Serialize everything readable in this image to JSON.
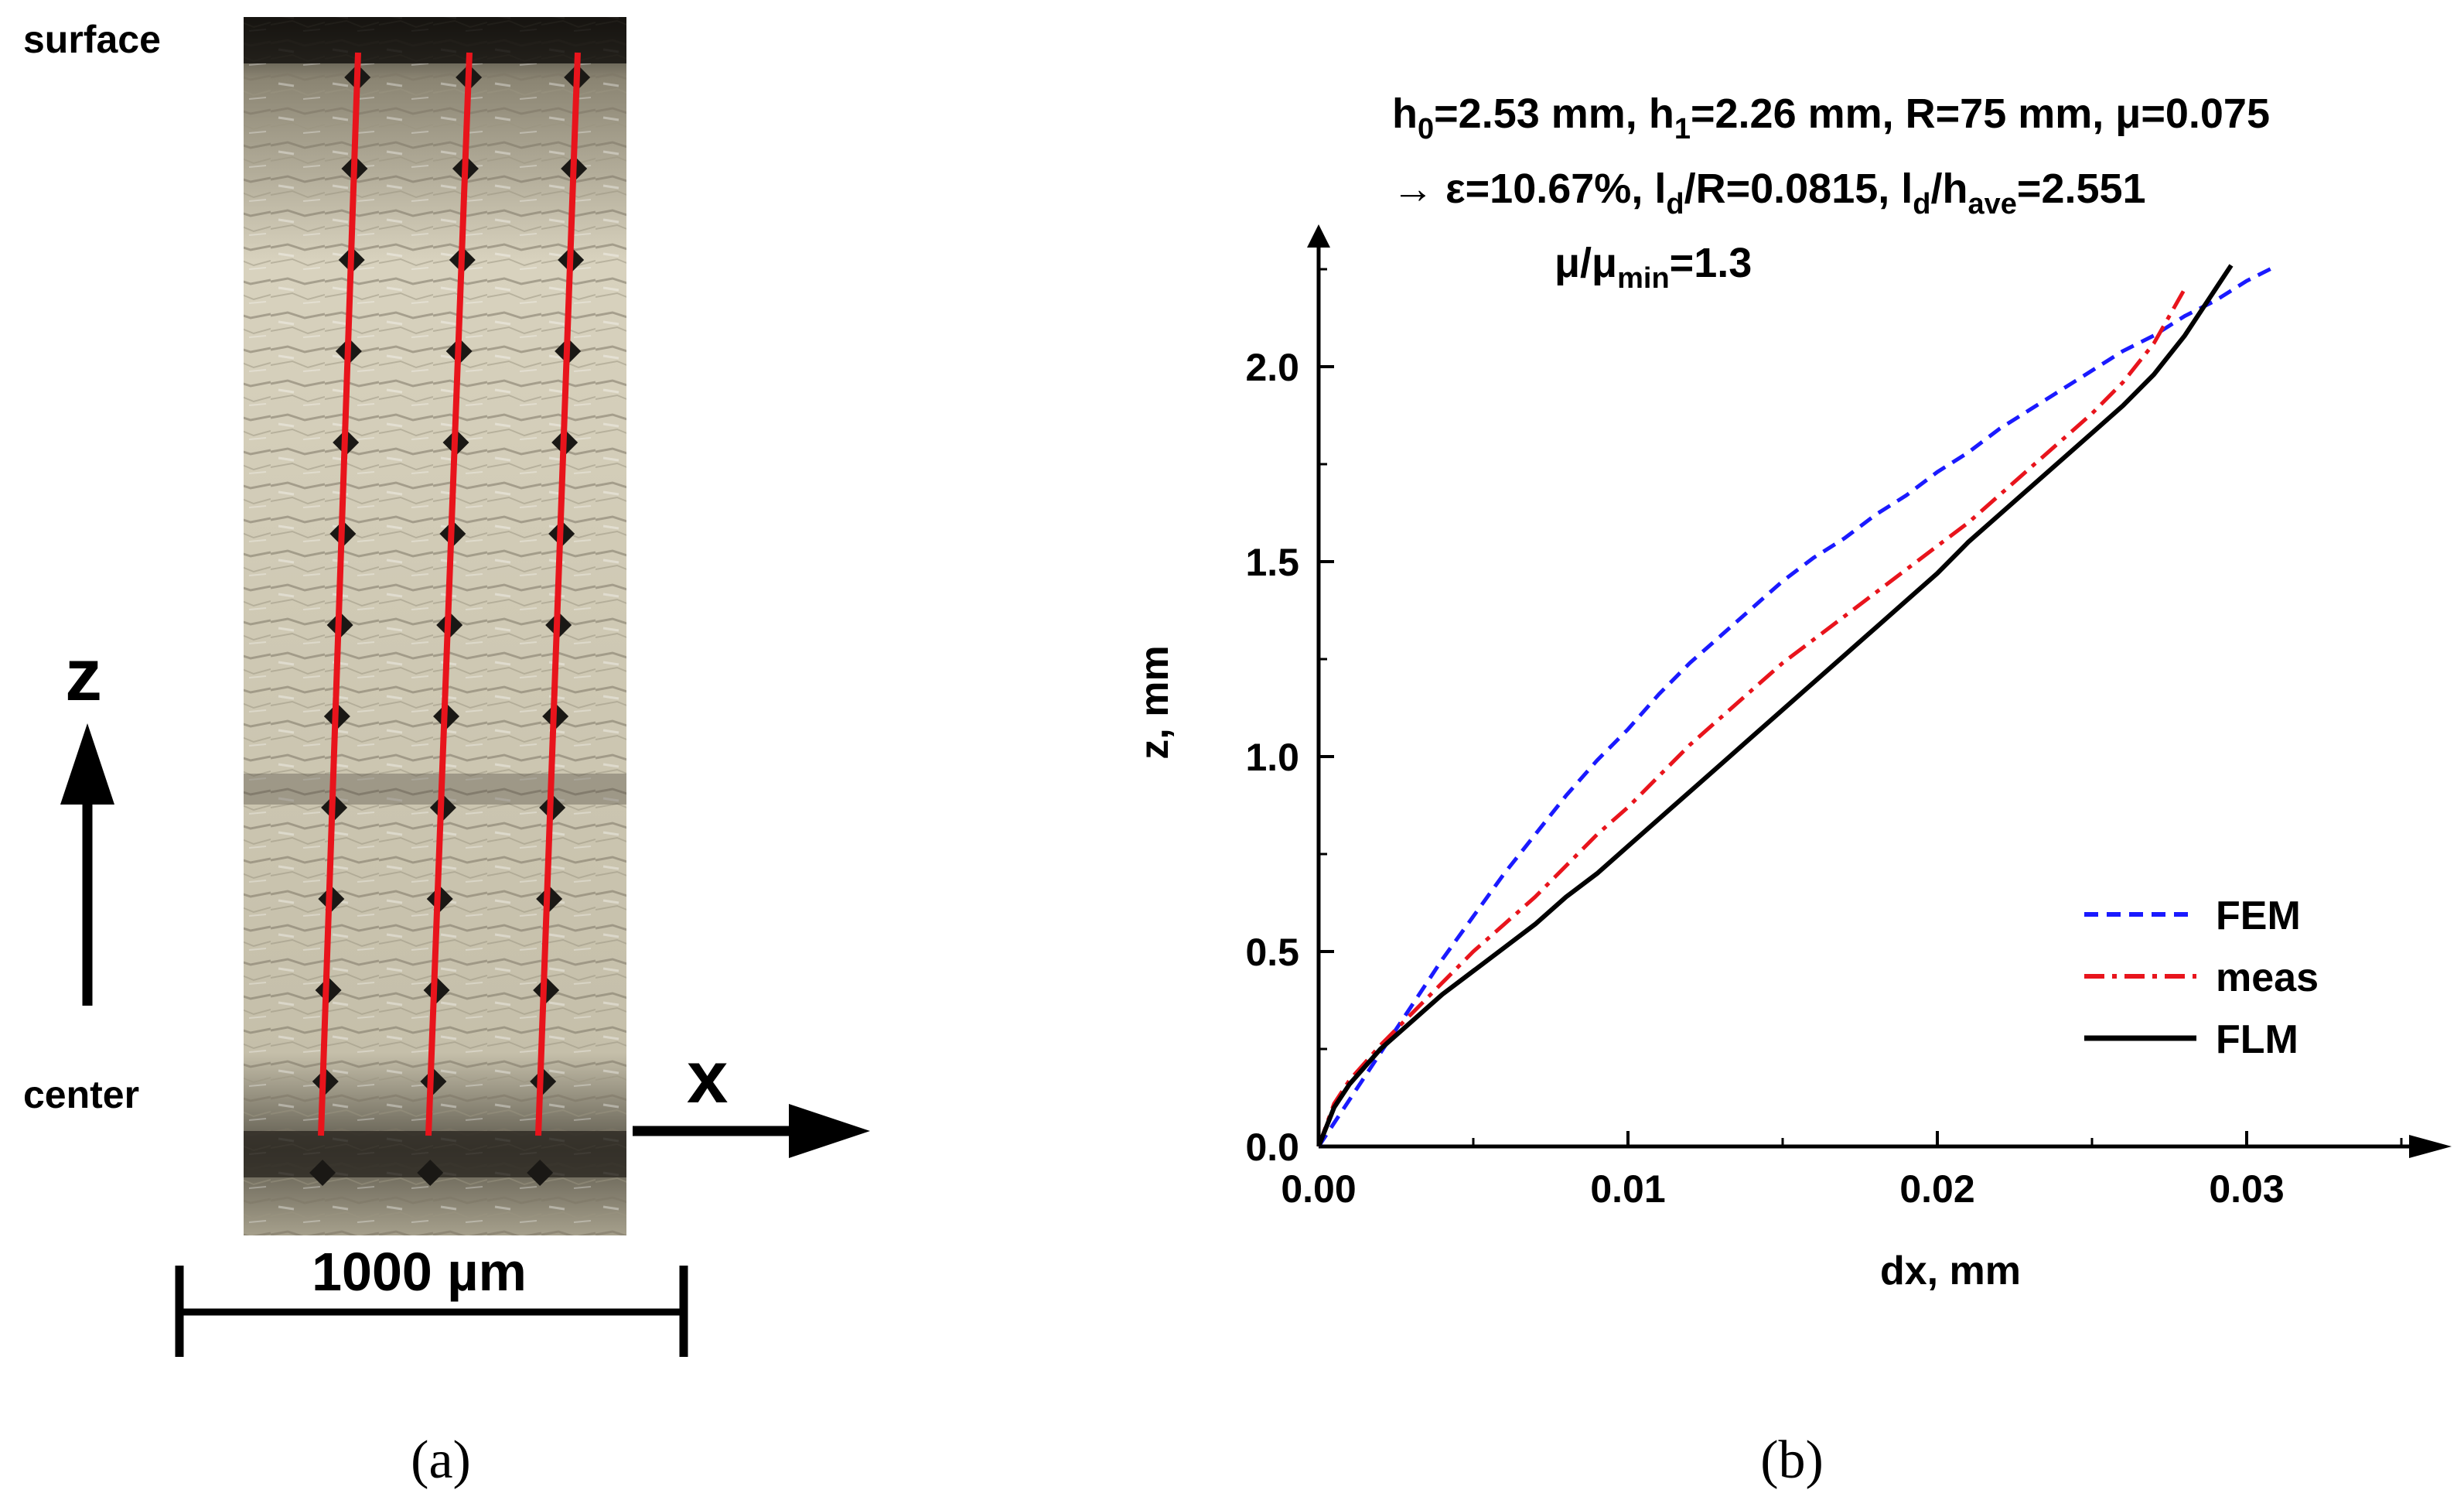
{
  "panel_a": {
    "label_surface": "surface",
    "label_center": "center",
    "axis_z": "z",
    "axis_x": "x",
    "scale_bar": "1000 µm",
    "caption": "(a)",
    "line_color": "#e8141c"
  },
  "panel_b": {
    "caption": "(b)",
    "annotation": {
      "line1": {
        "h0_base": "h",
        "h0_sub": "0",
        "h0_val": "=2.53 mm, ",
        "h1_base": "h",
        "h1_sub": "1",
        "h1_val": "=2.26 mm, R=75 mm, μ=0.075"
      },
      "line2": {
        "pre": "→ ε=10.67%, ",
        "ld1_base": "l",
        "ld1_sub": "d",
        "ld1_val": "/R=0.0815, ",
        "ld2_base": "l",
        "ld2_sub": "d",
        "ld2_mid": "/h",
        "ave_sub": "ave",
        "ld2_val": "=2.551"
      },
      "line3": {
        "base": "μ/μ",
        "sub": "min",
        "val": "=1.3"
      }
    }
  },
  "chart_data": {
    "type": "line",
    "title": "",
    "xlabel": "dx, mm",
    "ylabel": "z, mm",
    "xlim": [
      0,
      0.0365
    ],
    "ylim": [
      0,
      2.35
    ],
    "xticks": [
      0,
      0.01,
      0.02,
      0.03
    ],
    "xtick_labels": [
      "0.00",
      "0.01",
      "0.02",
      "0.03"
    ],
    "xminor": [
      0.005,
      0.015,
      0.025,
      0.035
    ],
    "yticks": [
      0,
      0.5,
      1.0,
      1.5,
      2.0
    ],
    "ytick_labels": [
      "0.0",
      "0.5",
      "1.0",
      "1.5",
      "2.0"
    ],
    "yminor": [
      0.25,
      0.75,
      1.25,
      1.75,
      2.25
    ],
    "legend_position": "bottom-right",
    "series": [
      {
        "name": "FEM",
        "color": "#1a1aff",
        "dash": "dashed",
        "x": [
          0,
          0.001,
          0.002,
          0.003,
          0.004,
          0.005,
          0.006,
          0.007,
          0.008,
          0.009,
          0.01,
          0.011,
          0.012,
          0.013,
          0.014,
          0.015,
          0.016,
          0.017,
          0.018,
          0.019,
          0.02,
          0.021,
          0.022,
          0.023,
          0.024,
          0.025,
          0.026,
          0.027,
          0.028,
          0.029,
          0.03,
          0.031
        ],
        "y": [
          0,
          0.12,
          0.24,
          0.36,
          0.48,
          0.59,
          0.7,
          0.8,
          0.9,
          0.99,
          1.07,
          1.16,
          1.24,
          1.31,
          1.38,
          1.45,
          1.51,
          1.56,
          1.62,
          1.67,
          1.73,
          1.78,
          1.84,
          1.89,
          1.94,
          1.99,
          2.04,
          2.08,
          2.13,
          2.17,
          2.22,
          2.26
        ]
      },
      {
        "name": "meas",
        "color": "#e8141c",
        "dash": "dash-dot",
        "x": [
          0,
          0.0005,
          0.001,
          0.002,
          0.003,
          0.004,
          0.005,
          0.006,
          0.007,
          0.008,
          0.009,
          0.01,
          0.011,
          0.012,
          0.013,
          0.014,
          0.015,
          0.016,
          0.017,
          0.018,
          0.019,
          0.02,
          0.021,
          0.022,
          0.023,
          0.024,
          0.025,
          0.026,
          0.027,
          0.0275,
          0.028
        ],
        "y": [
          0,
          0.11,
          0.17,
          0.26,
          0.34,
          0.42,
          0.5,
          0.57,
          0.64,
          0.72,
          0.8,
          0.87,
          0.95,
          1.03,
          1.1,
          1.17,
          1.24,
          1.3,
          1.36,
          1.42,
          1.48,
          1.54,
          1.6,
          1.67,
          1.74,
          1.81,
          1.88,
          1.96,
          2.06,
          2.13,
          2.2
        ]
      },
      {
        "name": "FLM",
        "color": "#000000",
        "dash": "solid",
        "x": [
          0,
          0.0005,
          0.001,
          0.002,
          0.003,
          0.004,
          0.005,
          0.006,
          0.007,
          0.008,
          0.009,
          0.01,
          0.011,
          0.012,
          0.013,
          0.014,
          0.015,
          0.016,
          0.017,
          0.018,
          0.019,
          0.02,
          0.021,
          0.022,
          0.023,
          0.024,
          0.025,
          0.026,
          0.027,
          0.028,
          0.029,
          0.0295
        ],
        "y": [
          0,
          0.1,
          0.16,
          0.25,
          0.32,
          0.39,
          0.45,
          0.51,
          0.57,
          0.64,
          0.7,
          0.77,
          0.84,
          0.91,
          0.98,
          1.05,
          1.12,
          1.19,
          1.26,
          1.33,
          1.4,
          1.47,
          1.55,
          1.62,
          1.69,
          1.76,
          1.83,
          1.9,
          1.98,
          2.08,
          2.2,
          2.26
        ]
      }
    ]
  }
}
